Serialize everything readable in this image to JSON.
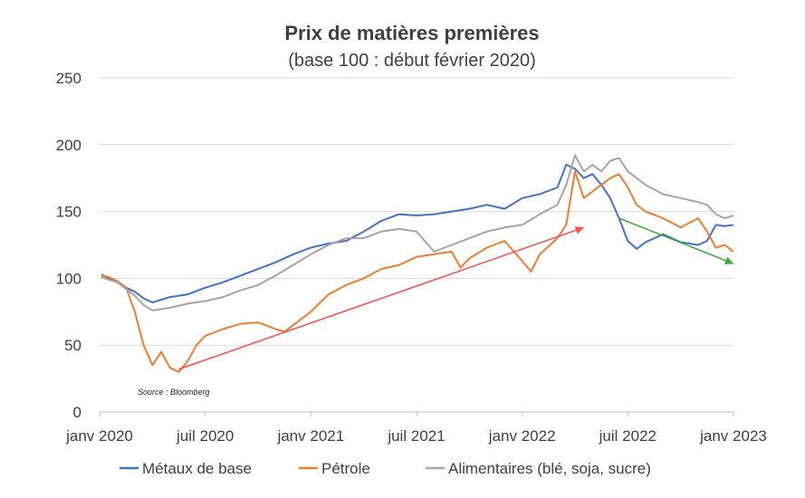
{
  "chart_data": {
    "type": "line",
    "title": "Prix de matières premières",
    "subtitle": "(base 100 : début février 2020)",
    "source": "Source : Bloomberg",
    "ylim": [
      0,
      250
    ],
    "yticks": [
      0,
      50,
      100,
      150,
      200,
      250
    ],
    "xlim": [
      0,
      36
    ],
    "xticks": [
      {
        "x": 0,
        "label": "janv 2020"
      },
      {
        "x": 6,
        "label": "juil 2020"
      },
      {
        "x": 12,
        "label": "janv 2021"
      },
      {
        "x": 18,
        "label": "juil 2021"
      },
      {
        "x": 24,
        "label": "janv 2022"
      },
      {
        "x": 30,
        "label": "juil 2022"
      },
      {
        "x": 36,
        "label": "janv 2023"
      }
    ],
    "grid": true,
    "legend_position": "bottom",
    "series": [
      {
        "name": "Métaux de base",
        "color": "#4472c4",
        "points": [
          [
            0.1,
            103
          ],
          [
            0.5,
            100
          ],
          [
            1,
            98
          ],
          [
            1.5,
            93
          ],
          [
            2,
            90
          ],
          [
            2.5,
            85
          ],
          [
            3,
            82
          ],
          [
            3.5,
            84
          ],
          [
            4,
            86
          ],
          [
            5,
            88
          ],
          [
            6,
            93
          ],
          [
            7,
            97
          ],
          [
            8,
            102
          ],
          [
            9,
            107
          ],
          [
            10,
            112
          ],
          [
            11,
            118
          ],
          [
            12,
            123
          ],
          [
            13,
            126
          ],
          [
            14,
            128
          ],
          [
            15,
            135
          ],
          [
            16,
            143
          ],
          [
            17,
            148
          ],
          [
            18,
            147
          ],
          [
            19,
            148
          ],
          [
            20,
            150
          ],
          [
            21,
            152
          ],
          [
            22,
            155
          ],
          [
            23,
            152
          ],
          [
            24,
            160
          ],
          [
            25,
            163
          ],
          [
            26,
            168
          ],
          [
            26.5,
            185
          ],
          [
            27,
            182
          ],
          [
            27.5,
            175
          ],
          [
            28,
            178
          ],
          [
            28.5,
            170
          ],
          [
            29,
            160
          ],
          [
            29.5,
            145
          ],
          [
            30,
            128
          ],
          [
            30.5,
            122
          ],
          [
            31,
            127
          ],
          [
            32,
            133
          ],
          [
            33,
            127
          ],
          [
            34,
            125
          ],
          [
            34.5,
            128
          ],
          [
            35,
            140
          ],
          [
            35.5,
            139
          ],
          [
            36,
            140
          ]
        ]
      },
      {
        "name": "Pétrole",
        "color": "#ed7d31",
        "points": [
          [
            0.1,
            102
          ],
          [
            0.5,
            101
          ],
          [
            1,
            98
          ],
          [
            1.5,
            93
          ],
          [
            2,
            75
          ],
          [
            2.5,
            50
          ],
          [
            3,
            35
          ],
          [
            3.5,
            45
          ],
          [
            4,
            33
          ],
          [
            4.5,
            30
          ],
          [
            5,
            38
          ],
          [
            5.5,
            50
          ],
          [
            6,
            57
          ],
          [
            7,
            62
          ],
          [
            8,
            66
          ],
          [
            9,
            67
          ],
          [
            10,
            62
          ],
          [
            10.5,
            60
          ],
          [
            11,
            65
          ],
          [
            12,
            75
          ],
          [
            13,
            88
          ],
          [
            14,
            95
          ],
          [
            15,
            100
          ],
          [
            16,
            107
          ],
          [
            17,
            110
          ],
          [
            18,
            116
          ],
          [
            19,
            118
          ],
          [
            20,
            120
          ],
          [
            20.5,
            108
          ],
          [
            21,
            115
          ],
          [
            22,
            123
          ],
          [
            23,
            128
          ],
          [
            24,
            113
          ],
          [
            24.5,
            105
          ],
          [
            25,
            118
          ],
          [
            26,
            130
          ],
          [
            26.5,
            140
          ],
          [
            27,
            180
          ],
          [
            27.5,
            160
          ],
          [
            28,
            165
          ],
          [
            28.5,
            170
          ],
          [
            29,
            175
          ],
          [
            29.5,
            178
          ],
          [
            30,
            168
          ],
          [
            30.5,
            155
          ],
          [
            31,
            150
          ],
          [
            32,
            145
          ],
          [
            33,
            138
          ],
          [
            34,
            145
          ],
          [
            34.5,
            135
          ],
          [
            35,
            123
          ],
          [
            35.5,
            125
          ],
          [
            36,
            120
          ]
        ]
      },
      {
        "name": "Alimentaires (blé, soja, sucre)",
        "color": "#a5a5a5",
        "points": [
          [
            0.1,
            101
          ],
          [
            0.5,
            99
          ],
          [
            1,
            97
          ],
          [
            1.5,
            92
          ],
          [
            2,
            87
          ],
          [
            2.5,
            80
          ],
          [
            3,
            76
          ],
          [
            4,
            78
          ],
          [
            5,
            81
          ],
          [
            6,
            83
          ],
          [
            7,
            86
          ],
          [
            8,
            91
          ],
          [
            9,
            95
          ],
          [
            10,
            102
          ],
          [
            11,
            110
          ],
          [
            12,
            118
          ],
          [
            13,
            125
          ],
          [
            14,
            130
          ],
          [
            15,
            130
          ],
          [
            16,
            135
          ],
          [
            17,
            137
          ],
          [
            18,
            135
          ],
          [
            19,
            120
          ],
          [
            20,
            125
          ],
          [
            21,
            130
          ],
          [
            22,
            135
          ],
          [
            23,
            138
          ],
          [
            24,
            140
          ],
          [
            25,
            148
          ],
          [
            26,
            155
          ],
          [
            26.5,
            170
          ],
          [
            27,
            192
          ],
          [
            27.5,
            180
          ],
          [
            28,
            185
          ],
          [
            28.5,
            180
          ],
          [
            29,
            188
          ],
          [
            29.5,
            190
          ],
          [
            30,
            180
          ],
          [
            31,
            170
          ],
          [
            32,
            163
          ],
          [
            33,
            160
          ],
          [
            34,
            157
          ],
          [
            34.5,
            155
          ],
          [
            35,
            148
          ],
          [
            35.5,
            145
          ],
          [
            36,
            147
          ]
        ]
      }
    ],
    "annotations": [
      {
        "type": "arrow",
        "color": "#ff4b4b",
        "from": [
          4.5,
          32
        ],
        "to": [
          27.5,
          138
        ]
      },
      {
        "type": "arrow",
        "color": "#3aaa35",
        "from": [
          29.5,
          145
        ],
        "to": [
          36,
          111
        ]
      }
    ]
  }
}
